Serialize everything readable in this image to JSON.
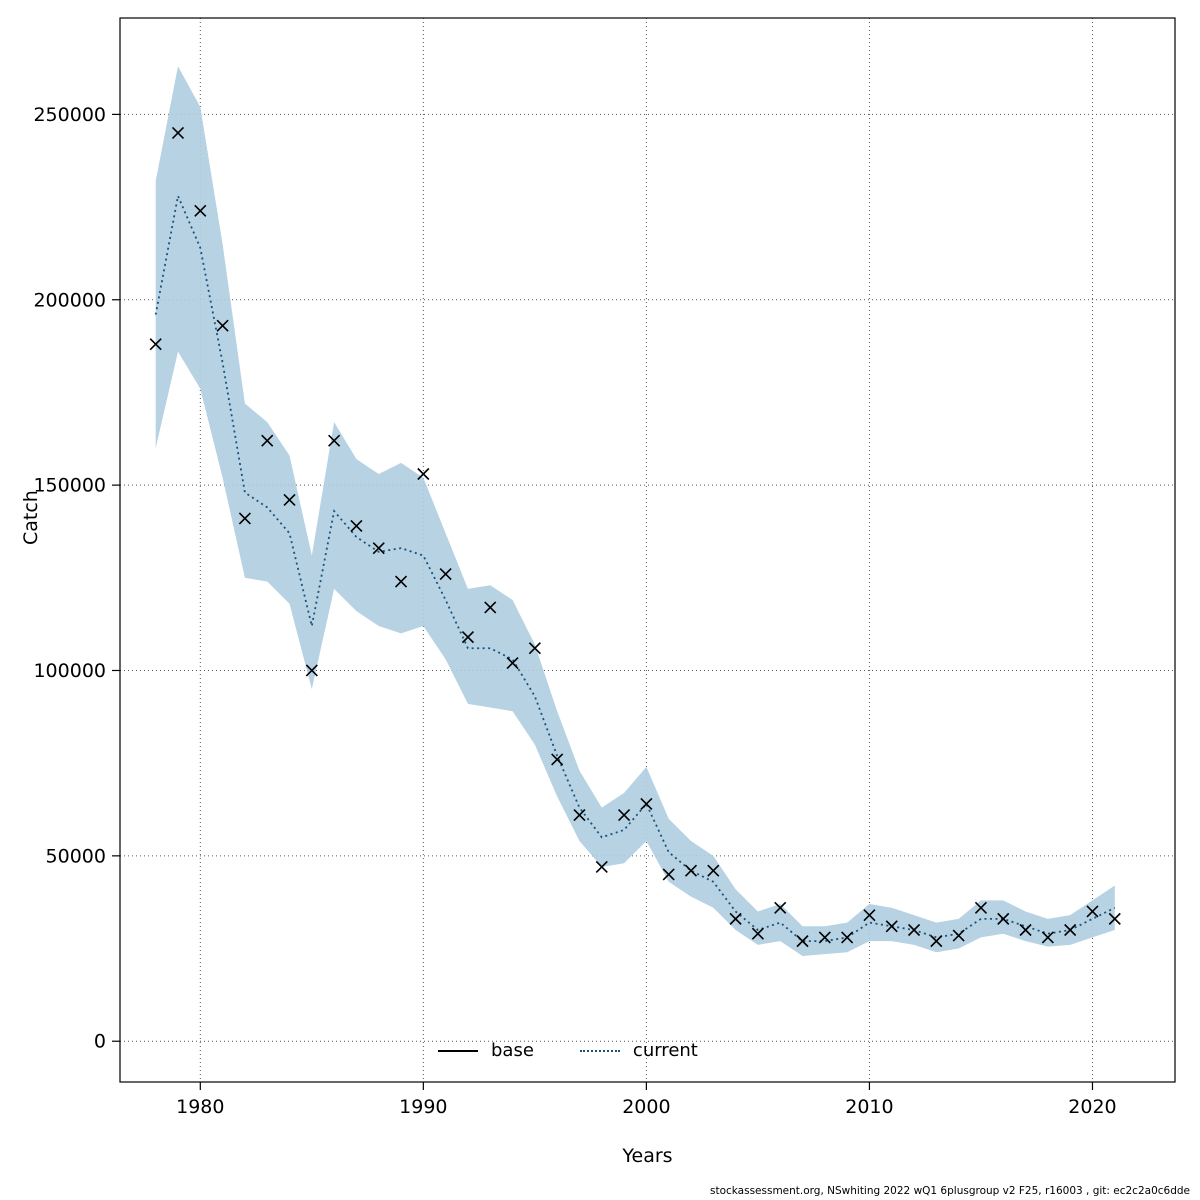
{
  "figure": {
    "background": "#ffffff"
  },
  "chart_data": {
    "type": "line",
    "title": "",
    "xlabel": "Years",
    "ylabel": "Catch",
    "xlim": [
      1976.4,
      2023.7
    ],
    "ylim": [
      -11000,
      276000
    ],
    "x_ticks": [
      1980,
      1990,
      2000,
      2010,
      2020
    ],
    "y_ticks": [
      0,
      50000,
      100000,
      150000,
      200000,
      250000
    ],
    "grid": true,
    "legend": [
      "base",
      "current"
    ],
    "legend_position": "bottom-center-inside",
    "years": [
      1978,
      1979,
      1980,
      1981,
      1982,
      1983,
      1984,
      1985,
      1986,
      1987,
      1988,
      1989,
      1990,
      1991,
      1992,
      1993,
      1994,
      1995,
      1996,
      1997,
      1998,
      1999,
      2000,
      2001,
      2002,
      2003,
      2004,
      2005,
      2006,
      2007,
      2008,
      2009,
      2010,
      2011,
      2012,
      2013,
      2014,
      2015,
      2016,
      2017,
      2018,
      2019,
      2020,
      2021
    ],
    "series": [
      {
        "name": "base",
        "style": "x-markers",
        "color": "#000000",
        "values": [
          188000,
          245000,
          224000,
          193000,
          141000,
          162000,
          146000,
          100000,
          162000,
          139000,
          133000,
          124000,
          153000,
          126000,
          109000,
          117000,
          102000,
          106000,
          76000,
          61000,
          47000,
          61000,
          64000,
          45000,
          46000,
          46000,
          33000,
          29000,
          36000,
          27000,
          28000,
          28000,
          34000,
          31000,
          30000,
          27000,
          28500,
          36000,
          33000,
          30000,
          28000,
          30000,
          35000,
          33000
        ]
      },
      {
        "name": "current",
        "style": "dotted-line",
        "color": "#1b5279",
        "values": [
          196000,
          228000,
          214000,
          183000,
          148000,
          144000,
          137000,
          112000,
          143000,
          136000,
          132000,
          133000,
          131000,
          119000,
          106000,
          106000,
          103000,
          93000,
          77000,
          63000,
          55000,
          57000,
          64000,
          51000,
          46000,
          43000,
          35000,
          30000,
          32000,
          27000,
          27000,
          28000,
          32000,
          31000,
          30000,
          28000,
          29000,
          33000,
          33000,
          31000,
          29000,
          30000,
          33000,
          36000
        ]
      }
    ],
    "band": {
      "name": "current-confidence-interval",
      "color": "#aecde0",
      "lower": [
        160000,
        186000,
        176000,
        152000,
        125000,
        124000,
        118000,
        95000,
        122000,
        116000,
        112000,
        110000,
        112000,
        103000,
        91000,
        90000,
        89000,
        80000,
        66000,
        54000,
        47000,
        48000,
        54000,
        43000,
        39000,
        36000,
        30000,
        26000,
        27000,
        23000,
        23500,
        24000,
        27000,
        27000,
        26000,
        24000,
        25000,
        28000,
        29000,
        27000,
        25500,
        26000,
        28000,
        30000
      ],
      "upper": [
        232000,
        263000,
        252000,
        215000,
        172000,
        167000,
        158000,
        131000,
        167000,
        157000,
        153000,
        156000,
        152000,
        137000,
        122000,
        123000,
        119000,
        107000,
        89000,
        73000,
        63000,
        67000,
        74000,
        60000,
        54000,
        50000,
        41000,
        35000,
        37000,
        31000,
        31000,
        32000,
        37000,
        36000,
        34000,
        32000,
        33000,
        38000,
        38000,
        35000,
        33000,
        34000,
        38000,
        42000
      ]
    }
  },
  "footer": {
    "text": "stockassessment.org, NSwhiting 2022 wQ1 6plusgroup v2 F25, r16003 , git: ec2c2a0c6dde"
  }
}
